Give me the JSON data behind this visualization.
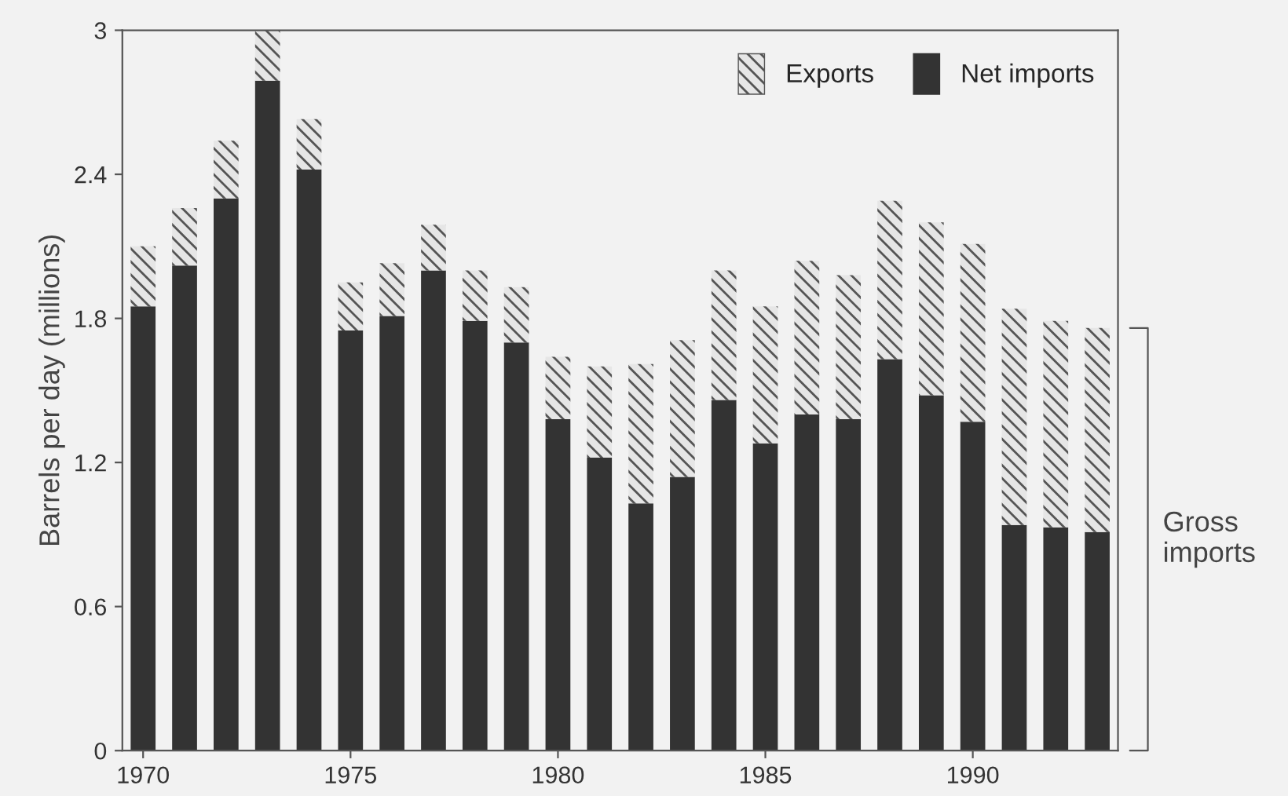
{
  "chart_data": {
    "type": "bar",
    "stacked": true,
    "ylabel": "Barrels per day (millions)",
    "x": [
      1970,
      1971,
      1972,
      1973,
      1974,
      1975,
      1976,
      1977,
      1978,
      1979,
      1980,
      1981,
      1982,
      1983,
      1984,
      1985,
      1986,
      1987,
      1988,
      1989,
      1990,
      1991,
      1992,
      1993
    ],
    "series": [
      {
        "name": "Net imports",
        "color": "#333333",
        "values": [
          1.85,
          2.02,
          2.3,
          2.79,
          2.42,
          1.75,
          1.81,
          2.0,
          1.79,
          1.7,
          1.38,
          1.22,
          1.03,
          1.14,
          1.46,
          1.28,
          1.4,
          1.38,
          1.63,
          1.48,
          1.37,
          0.94,
          0.93,
          0.91
        ]
      },
      {
        "name": "Exports",
        "color": "#e6e6e6",
        "values": [
          0.25,
          0.24,
          0.24,
          0.21,
          0.21,
          0.2,
          0.22,
          0.19,
          0.21,
          0.23,
          0.26,
          0.38,
          0.58,
          0.57,
          0.54,
          0.57,
          0.64,
          0.6,
          0.66,
          0.72,
          0.74,
          0.9,
          0.86,
          0.85
        ]
      }
    ],
    "xlim": [
      1969.5,
      1993.5
    ],
    "xticks": [
      1970,
      1975,
      1980,
      1985,
      1990
    ],
    "ylim": [
      0,
      3
    ],
    "yticks": [
      0,
      0.6,
      1.2,
      1.8,
      2.4,
      3
    ],
    "legend": "top right",
    "grid": false,
    "annotations": [
      "Gross imports"
    ]
  }
}
